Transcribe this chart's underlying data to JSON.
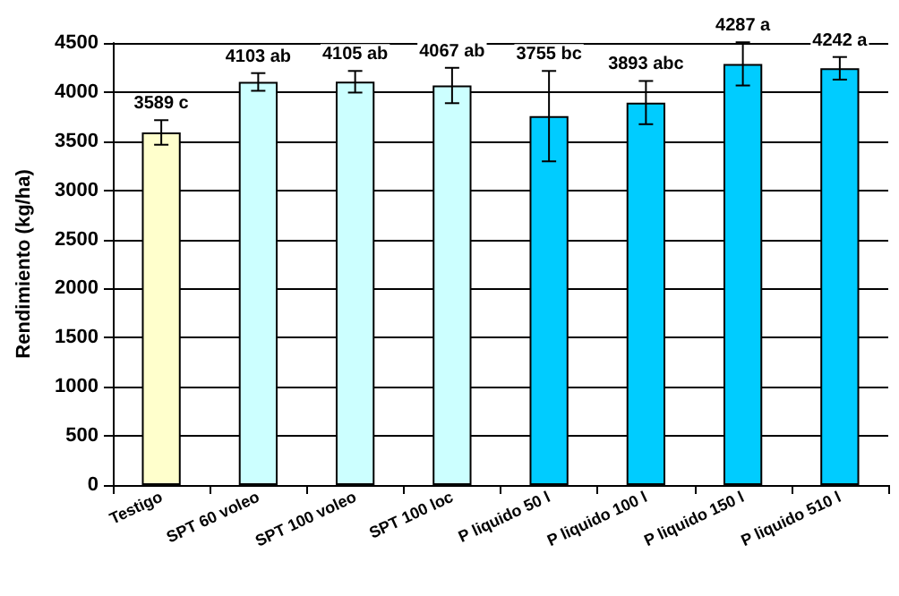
{
  "chart_data": {
    "type": "bar",
    "ylabel": "Rendimiento (kg/ha)",
    "categories": [
      "Testigo",
      "SPT 60 voleo",
      "SPT 100 voleo",
      "SPT 100 loc",
      "P liquido 50 l",
      "P liquido 100 l",
      "P liquido 150 l",
      "P liquido 510 l"
    ],
    "values": [
      3589,
      4103,
      4105,
      4067,
      3755,
      3893,
      4287,
      4242
    ],
    "value_labels": [
      "3589 c",
      "4103 ab",
      "4105 ab",
      "4067 ab",
      "3755 bc",
      "3893 abc",
      "4287 a",
      "4242 a"
    ],
    "errors": [
      125,
      90,
      110,
      180,
      460,
      220,
      220,
      115
    ],
    "colors": [
      "#ffffcc",
      "#ccffff",
      "#ccffff",
      "#ccffff",
      "#00ccff",
      "#00ccff",
      "#00ccff",
      "#00ccff"
    ],
    "ylim": [
      0,
      4500
    ],
    "yticks": [
      0,
      500,
      1000,
      1500,
      2000,
      2500,
      3000,
      3500,
      4000,
      4500
    ],
    "grid": "y"
  }
}
